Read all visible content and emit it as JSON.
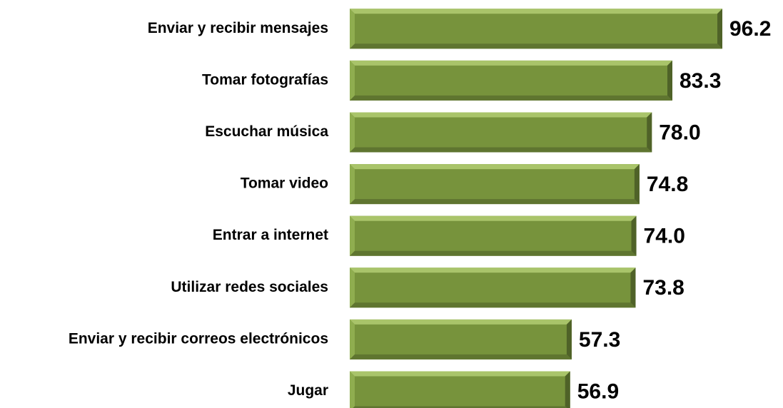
{
  "chart_data": {
    "type": "bar",
    "orientation": "horizontal",
    "categories": [
      "Enviar y recibir mensajes",
      "Tomar fotografías",
      "Escuchar música",
      "Tomar video",
      "Entrar a internet",
      "Utilizar redes sociales",
      "Enviar y recibir correos electrónicos",
      "Jugar"
    ],
    "values": [
      96.2,
      83.3,
      78.0,
      74.8,
      74.0,
      73.8,
      57.3,
      56.9
    ],
    "value_labels": [
      "96.2",
      "83.3",
      "78.0",
      "74.8",
      "74.0",
      "73.8",
      "57.3",
      "56.9"
    ],
    "color": "#77933c"
  }
}
